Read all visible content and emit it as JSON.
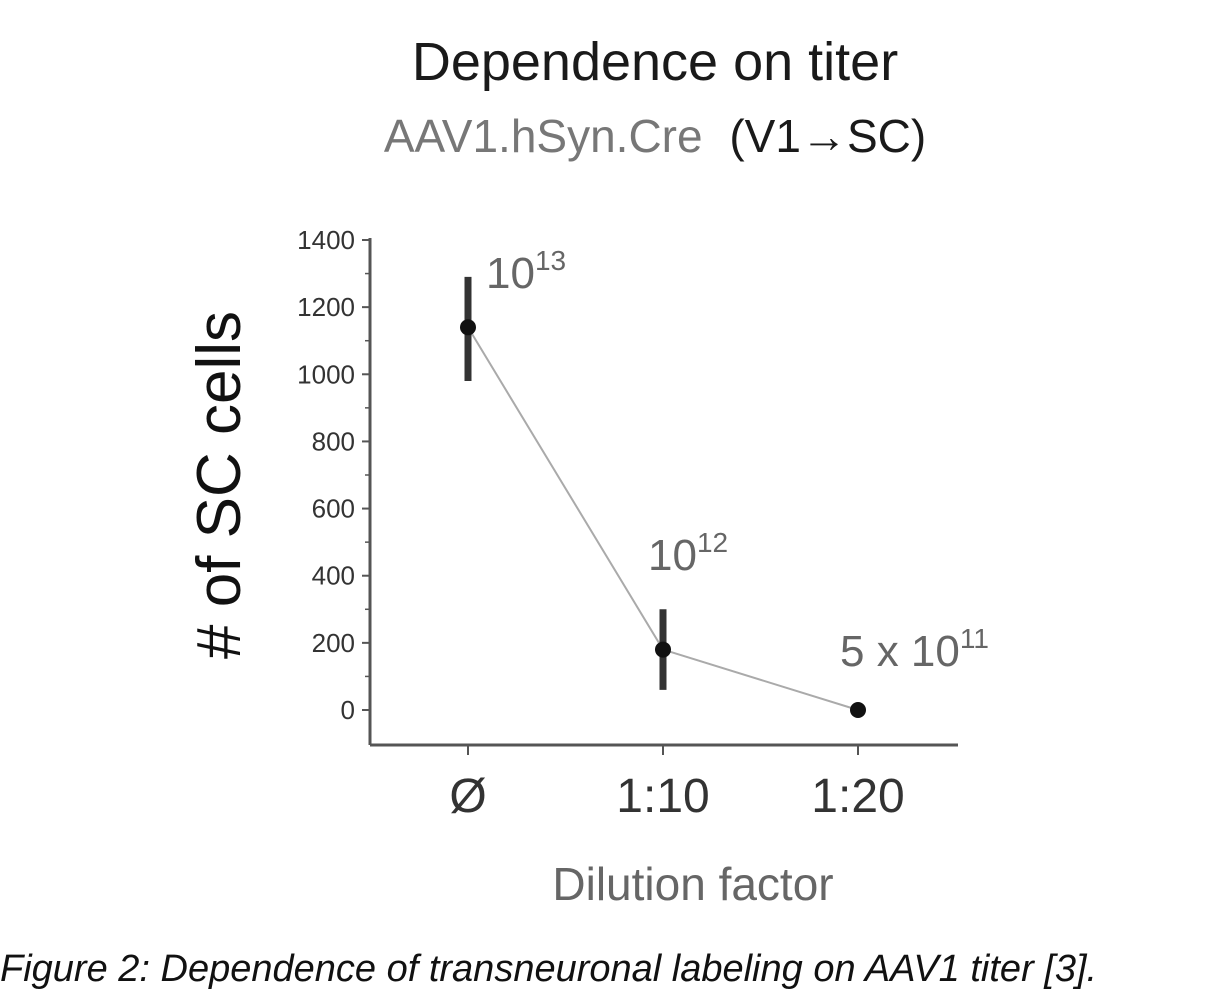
{
  "chart_data": {
    "type": "line",
    "title": "Dependence on titer",
    "subtitle": {
      "construct": "AAV1.hSyn.Cre",
      "projection": "(V1→SC)"
    },
    "xlabel": "Dilution factor",
    "ylabel": "# of SC cells",
    "categories": [
      "Ø",
      "1:10",
      "1:20"
    ],
    "ylim": [
      0,
      1400
    ],
    "yticks": [
      0,
      200,
      400,
      600,
      800,
      1000,
      1200,
      1400
    ],
    "grid": false,
    "series": [
      {
        "values": [
          1140,
          180,
          0
        ],
        "error_low": [
          980,
          60,
          0
        ],
        "error_high": [
          1290,
          300,
          0
        ],
        "annotations": [
          {
            "base": "10",
            "exp": "13"
          },
          {
            "base": "10",
            "exp": "12"
          },
          {
            "base": "5 x 10",
            "exp": "11"
          }
        ]
      }
    ],
    "colors": {
      "line": "#aaaaaa",
      "marker": "#111111",
      "errorbar": "#333333",
      "axis": "#555555"
    }
  },
  "caption": "Figure 2: Dependence of transneuronal labeling on AAV1 titer [3]."
}
